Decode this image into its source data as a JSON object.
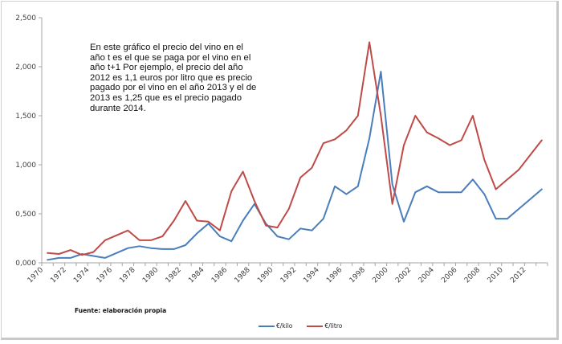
{
  "chart_data": {
    "type": "line",
    "title": "",
    "xlabel": "",
    "ylabel": "",
    "ylim": [
      0,
      2.5
    ],
    "y_ticks": [
      "0,000",
      "0,500",
      "1,000",
      "1,500",
      "2,000",
      "2,500"
    ],
    "y_tick_values": [
      0,
      0.5,
      1.0,
      1.5,
      2.0,
      2.5
    ],
    "x": [
      1970,
      1971,
      1972,
      1973,
      1974,
      1975,
      1976,
      1977,
      1978,
      1979,
      1980,
      1981,
      1982,
      1983,
      1984,
      1985,
      1986,
      1987,
      1988,
      1989,
      1990,
      1991,
      1992,
      1993,
      1994,
      1995,
      1996,
      1997,
      1998,
      1999,
      2000,
      2001,
      2002,
      2003,
      2004,
      2005,
      2006,
      2007,
      2008,
      2009,
      2010,
      2011,
      2012,
      2013
    ],
    "x_tick_labels": [
      "1970",
      "1972",
      "1974",
      "1976",
      "1978",
      "1980",
      "1982",
      "1984",
      "1986",
      "1988",
      "1990",
      "1992",
      "1994",
      "1996",
      "1998",
      "2000",
      "2002",
      "2004",
      "2006",
      "2008",
      "2010",
      "2012"
    ],
    "grid": false,
    "legend_position": "bottom",
    "series": [
      {
        "name": "€/kilo",
        "color": "#4a7ebb",
        "values": [
          0.03,
          0.05,
          0.05,
          0.09,
          0.07,
          0.05,
          0.1,
          0.15,
          0.17,
          0.15,
          0.14,
          0.14,
          0.18,
          0.3,
          0.4,
          0.27,
          0.22,
          0.43,
          0.6,
          0.4,
          0.27,
          0.24,
          0.35,
          0.33,
          0.45,
          0.78,
          0.7,
          0.78,
          1.27,
          1.95,
          0.8,
          0.42,
          0.72,
          0.78,
          0.72,
          0.72,
          0.72,
          0.85,
          0.7,
          0.45,
          0.45,
          0.55,
          0.65,
          0.75
        ]
      },
      {
        "name": "€/litro",
        "color": "#be4b48",
        "values": [
          0.1,
          0.09,
          0.13,
          0.08,
          0.11,
          0.23,
          0.28,
          0.33,
          0.23,
          0.23,
          0.27,
          0.43,
          0.63,
          0.43,
          0.42,
          0.33,
          0.73,
          0.93,
          0.63,
          0.38,
          0.36,
          0.55,
          0.87,
          0.97,
          1.22,
          1.26,
          1.35,
          1.5,
          2.25,
          1.5,
          0.6,
          1.2,
          1.5,
          1.33,
          1.27,
          1.2,
          1.25,
          1.5,
          1.05,
          0.75,
          0.85,
          0.95,
          1.1,
          1.25
        ]
      }
    ],
    "annotations": [
      "En este gráfico el precio del vino en el año t es el que se paga por el vino en el año t+1 Por ejemplo, el precio del año 2012 es 1,1 euros por litro que es precio pagado por el vino en el año 2013 y el de 2013 es 1,25 que es el precio pagado durante 2014."
    ]
  },
  "note_text": "En este gráfico el precio del vino en el año t es el que se paga por el vino en el año t+1 Por ejemplo, el precio del año 2012 es 1,1 euros por litro que es precio pagado por el vino en el año 2013 y el de 2013 es 1,25 que es el precio pagado durante 2014.",
  "source_text": "Fuente: elaboración propia",
  "legend": [
    {
      "label": "€/kilo",
      "color": "#4a7ebb"
    },
    {
      "label": "€/litro",
      "color": "#be4b48"
    }
  ]
}
